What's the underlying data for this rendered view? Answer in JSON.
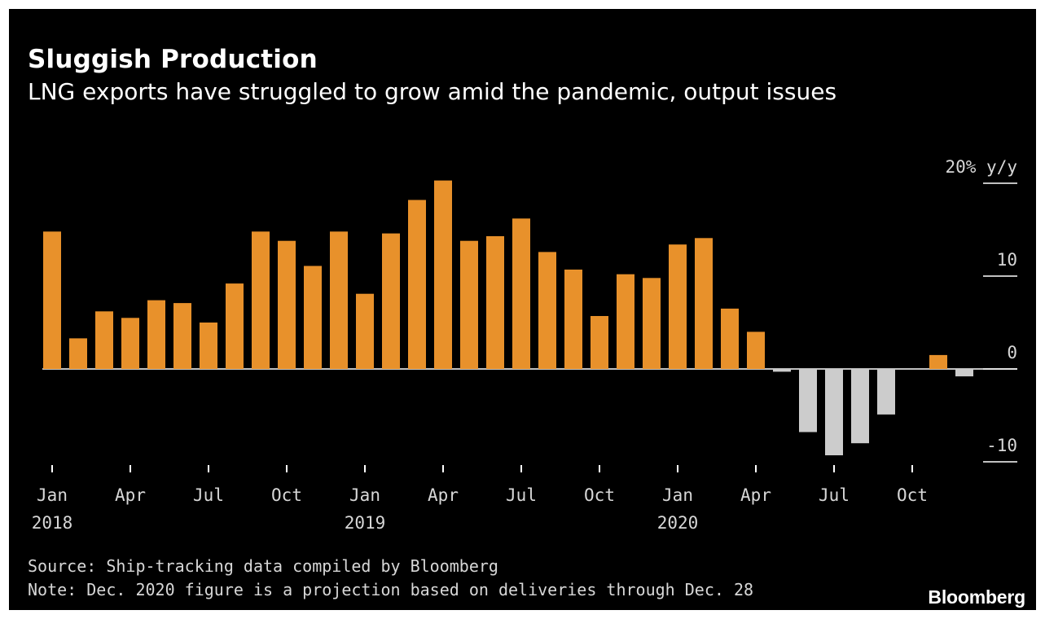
{
  "colors": {
    "background": "#000000",
    "positive_bar": "#e8912b",
    "negative_bar": "#cccccc",
    "text": "#ffffff",
    "muted_text": "#d7d7d7",
    "gridline": "#ffffff"
  },
  "chart_data": {
    "type": "bar",
    "title": "Sluggish Production",
    "subtitle": "LNG exports have struggled to grow amid the pandemic, output issues",
    "unit": "% y/y",
    "y_axis": {
      "position": "right",
      "ticks": [
        20,
        10,
        0,
        -10
      ],
      "tick_labels": [
        "20% y/y",
        "10",
        "0",
        "-10"
      ],
      "ylim": [
        -10,
        20
      ]
    },
    "x_axis": {
      "tick_labels": [
        {
          "month": "Jan",
          "year": "2018",
          "index": 0
        },
        {
          "month": "Apr",
          "year": "",
          "index": 3
        },
        {
          "month": "Jul",
          "year": "",
          "index": 6
        },
        {
          "month": "Oct",
          "year": "",
          "index": 9
        },
        {
          "month": "Jan",
          "year": "2019",
          "index": 12
        },
        {
          "month": "Apr",
          "year": "",
          "index": 15
        },
        {
          "month": "Jul",
          "year": "",
          "index": 18
        },
        {
          "month": "Oct",
          "year": "",
          "index": 21
        },
        {
          "month": "Jan",
          "year": "2020",
          "index": 24
        },
        {
          "month": "Apr",
          "year": "",
          "index": 27
        },
        {
          "month": "Jul",
          "year": "",
          "index": 30
        },
        {
          "month": "Oct",
          "year": "",
          "index": 33
        }
      ]
    },
    "categories": [
      "Jan 2018",
      "Feb 2018",
      "Mar 2018",
      "Apr 2018",
      "May 2018",
      "Jun 2018",
      "Jul 2018",
      "Aug 2018",
      "Sep 2018",
      "Oct 2018",
      "Nov 2018",
      "Dec 2018",
      "Jan 2019",
      "Feb 2019",
      "Mar 2019",
      "Apr 2019",
      "May 2019",
      "Jun 2019",
      "Jul 2019",
      "Aug 2019",
      "Sep 2019",
      "Oct 2019",
      "Nov 2019",
      "Dec 2019",
      "Jan 2020",
      "Feb 2020",
      "Mar 2020",
      "Apr 2020",
      "May 2020",
      "Jun 2020",
      "Jul 2020",
      "Aug 2020",
      "Sep 2020",
      "Oct 2020",
      "Nov 2020",
      "Dec 2020"
    ],
    "values": [
      14.8,
      3.3,
      6.2,
      5.5,
      7.4,
      7.1,
      5.0,
      9.2,
      14.8,
      13.8,
      11.1,
      14.8,
      8.1,
      14.6,
      18.2,
      20.3,
      13.8,
      14.3,
      16.2,
      12.6,
      10.7,
      5.7,
      10.2,
      9.8,
      13.4,
      14.1,
      6.5,
      4.0,
      -0.3,
      -6.8,
      -9.3,
      -8.0,
      -4.9,
      0.0,
      1.5,
      -0.8
    ],
    "ylim": [
      -10,
      20
    ],
    "grid": false,
    "legend": "none"
  },
  "footer": {
    "source": "Source: Ship-tracking data compiled by Bloomberg",
    "note": "Note: Dec. 2020 figure is a projection based on deliveries through Dec. 28",
    "brand": "Bloomberg"
  }
}
